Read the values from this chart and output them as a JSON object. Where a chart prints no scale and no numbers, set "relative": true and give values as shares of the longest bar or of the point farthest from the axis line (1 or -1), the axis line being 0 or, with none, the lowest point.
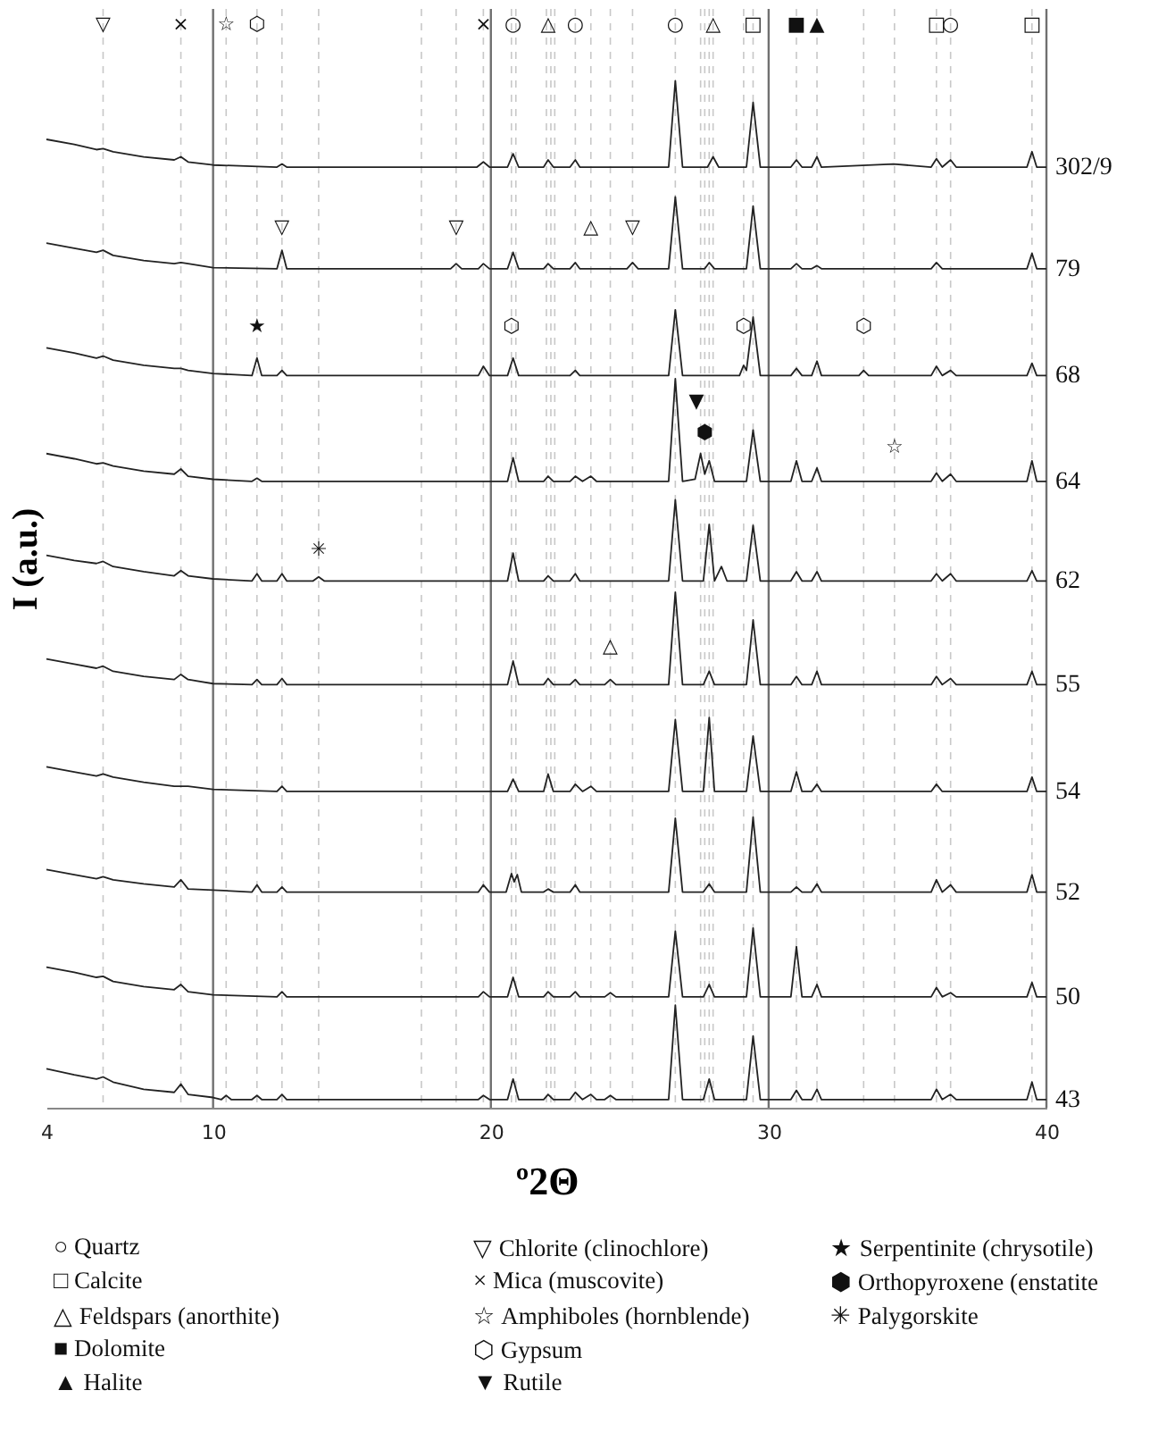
{
  "chart_data": {
    "type": "line",
    "relative": true,
    "xlabel": "º2Θ",
    "ylabel": "I (a.u.)",
    "xlim": [
      4,
      40
    ],
    "xticks": [
      4,
      10,
      20,
      30,
      40
    ],
    "line_style": "solid",
    "series": [
      {
        "name": "302/9",
        "color": "#222222",
        "x": [
          4,
          5,
          5.8,
          6.04,
          6.4,
          7.5,
          8.6,
          8.84,
          9.1,
          10,
          12.3,
          12.48,
          12.65,
          19.5,
          19.73,
          19.95,
          20.6,
          20.8,
          21.0,
          21.9,
          22.06,
          22.25,
          22.85,
          23.04,
          23.2,
          26.4,
          26.64,
          26.9,
          27.8,
          28.0,
          28.2,
          29.2,
          29.44,
          29.7,
          30.8,
          31.0,
          31.2,
          31.55,
          31.74,
          31.9,
          34.5,
          35.85,
          36.04,
          36.25,
          36.55,
          36.75,
          39.3,
          39.48,
          39.65,
          40
        ],
        "values": [
          0.943,
          0.938,
          0.933,
          0.934,
          0.931,
          0.926,
          0.923,
          0.926,
          0.921,
          0.918,
          0.916,
          0.919,
          0.916,
          0.916,
          0.921,
          0.916,
          0.916,
          0.929,
          0.916,
          0.916,
          0.923,
          0.916,
          0.916,
          0.923,
          0.916,
          0.916,
          1.0,
          0.916,
          0.916,
          0.926,
          0.916,
          0.916,
          0.979,
          0.916,
          0.916,
          0.923,
          0.916,
          0.916,
          0.926,
          0.916,
          0.919,
          0.916,
          0.924,
          0.916,
          0.923,
          0.916,
          0.916,
          0.931,
          0.916,
          0.916
        ]
      },
      {
        "name": "79",
        "color": "#222222",
        "x": [
          4,
          5,
          5.8,
          6.04,
          6.4,
          7.5,
          8.6,
          8.84,
          9.1,
          10,
          12.3,
          12.48,
          12.65,
          18.55,
          18.75,
          18.95,
          19.55,
          19.73,
          19.95,
          20.6,
          20.8,
          21.0,
          21.9,
          22.06,
          22.25,
          22.85,
          23.04,
          23.2,
          24.9,
          25.1,
          25.3,
          26.4,
          26.64,
          26.9,
          27.7,
          27.86,
          28.05,
          29.2,
          29.44,
          29.7,
          30.8,
          31.0,
          31.2,
          31.55,
          31.74,
          31.9,
          35.85,
          36.04,
          36.25,
          39.3,
          39.48,
          39.65,
          40
        ],
        "values": [
          0.842,
          0.837,
          0.833,
          0.835,
          0.83,
          0.825,
          0.822,
          0.823,
          0.822,
          0.818,
          0.817,
          0.835,
          0.817,
          0.817,
          0.822,
          0.817,
          0.817,
          0.822,
          0.817,
          0.817,
          0.833,
          0.817,
          0.817,
          0.822,
          0.817,
          0.817,
          0.823,
          0.817,
          0.817,
          0.823,
          0.817,
          0.817,
          0.887,
          0.817,
          0.817,
          0.823,
          0.817,
          0.817,
          0.878,
          0.817,
          0.817,
          0.822,
          0.817,
          0.817,
          0.82,
          0.817,
          0.817,
          0.823,
          0.817,
          0.817,
          0.832,
          0.817,
          0.817
        ]
      },
      {
        "name": "68",
        "color": "#222222",
        "x": [
          4,
          5,
          5.8,
          6.04,
          6.4,
          7.5,
          8.6,
          8.84,
          9.1,
          10,
          11.4,
          11.58,
          11.75,
          12.3,
          12.48,
          12.65,
          19.55,
          19.73,
          19.95,
          20.6,
          20.8,
          21.0,
          22.85,
          23.04,
          23.2,
          26.4,
          26.64,
          26.9,
          28.95,
          29.1,
          29.2,
          29.44,
          29.7,
          30.8,
          31.0,
          31.2,
          31.55,
          31.74,
          31.9,
          33.25,
          33.42,
          33.6,
          35.85,
          36.04,
          36.25,
          36.55,
          36.75,
          39.3,
          39.48,
          39.65,
          40
        ],
        "values": [
          0.74,
          0.735,
          0.73,
          0.732,
          0.728,
          0.723,
          0.72,
          0.72,
          0.718,
          0.715,
          0.713,
          0.73,
          0.713,
          0.713,
          0.718,
          0.713,
          0.713,
          0.722,
          0.713,
          0.713,
          0.73,
          0.713,
          0.713,
          0.718,
          0.713,
          0.713,
          0.777,
          0.713,
          0.713,
          0.723,
          0.718,
          0.77,
          0.713,
          0.713,
          0.72,
          0.713,
          0.713,
          0.727,
          0.713,
          0.713,
          0.718,
          0.713,
          0.713,
          0.722,
          0.713,
          0.718,
          0.713,
          0.713,
          0.725,
          0.713,
          0.713
        ]
      },
      {
        "name": "64",
        "color": "#222222",
        "x": [
          4,
          5,
          5.8,
          6.04,
          6.4,
          7.5,
          8.6,
          8.84,
          9.1,
          10,
          11.4,
          11.58,
          11.75,
          20.6,
          20.8,
          21.0,
          21.9,
          22.06,
          22.25,
          22.85,
          23.04,
          23.3,
          23.6,
          23.8,
          26.4,
          26.64,
          26.9,
          27.35,
          27.55,
          27.7,
          27.86,
          28.05,
          29.2,
          29.44,
          29.7,
          30.8,
          31.0,
          31.2,
          31.55,
          31.74,
          31.9,
          35.85,
          36.04,
          36.25,
          36.55,
          36.75,
          39.3,
          39.48,
          39.65,
          40
        ],
        "values": [
          0.637,
          0.632,
          0.627,
          0.628,
          0.625,
          0.62,
          0.617,
          0.622,
          0.615,
          0.612,
          0.61,
          0.613,
          0.61,
          0.61,
          0.633,
          0.61,
          0.61,
          0.615,
          0.61,
          0.61,
          0.615,
          0.61,
          0.615,
          0.61,
          0.61,
          0.71,
          0.61,
          0.612,
          0.637,
          0.617,
          0.63,
          0.61,
          0.61,
          0.66,
          0.61,
          0.61,
          0.63,
          0.61,
          0.61,
          0.623,
          0.61,
          0.61,
          0.618,
          0.61,
          0.617,
          0.61,
          0.61,
          0.63,
          0.61,
          0.61
        ]
      },
      {
        "name": "62",
        "color": "#222222",
        "x": [
          4,
          5,
          5.8,
          6.04,
          6.4,
          7.5,
          8.6,
          8.84,
          9.1,
          10,
          11.4,
          11.58,
          11.75,
          12.3,
          12.48,
          12.65,
          13.6,
          13.8,
          14.0,
          20.6,
          20.8,
          21.0,
          21.9,
          22.06,
          22.25,
          22.85,
          23.04,
          23.2,
          26.4,
          26.64,
          26.9,
          27.65,
          27.86,
          28.05,
          28.3,
          28.5,
          29.2,
          29.44,
          29.7,
          30.8,
          31.0,
          31.2,
          31.55,
          31.74,
          31.9,
          35.85,
          36.04,
          36.25,
          36.55,
          36.75,
          39.3,
          39.48,
          39.65,
          40
        ],
        "values": [
          0.538,
          0.533,
          0.53,
          0.532,
          0.527,
          0.522,
          0.518,
          0.523,
          0.518,
          0.515,
          0.513,
          0.52,
          0.513,
          0.513,
          0.52,
          0.513,
          0.513,
          0.517,
          0.513,
          0.513,
          0.54,
          0.513,
          0.513,
          0.518,
          0.513,
          0.513,
          0.52,
          0.513,
          0.513,
          0.592,
          0.513,
          0.513,
          0.568,
          0.513,
          0.527,
          0.513,
          0.513,
          0.567,
          0.513,
          0.513,
          0.522,
          0.513,
          0.513,
          0.522,
          0.513,
          0.513,
          0.52,
          0.513,
          0.52,
          0.513,
          0.513,
          0.523,
          0.513,
          0.513
        ]
      },
      {
        "name": "55",
        "color": "#222222",
        "x": [
          4,
          5,
          5.8,
          6.04,
          6.4,
          7.5,
          8.6,
          8.84,
          9.1,
          10,
          11.4,
          11.58,
          11.75,
          12.3,
          12.48,
          12.65,
          20.6,
          20.8,
          21.0,
          21.9,
          22.06,
          22.25,
          22.85,
          23.04,
          23.2,
          24.1,
          24.3,
          24.5,
          26.4,
          26.64,
          26.9,
          27.65,
          27.86,
          28.05,
          29.2,
          29.44,
          29.7,
          30.8,
          31.0,
          31.2,
          31.55,
          31.74,
          31.9,
          35.85,
          36.04,
          36.25,
          36.55,
          36.75,
          39.3,
          39.48,
          39.65,
          40
        ],
        "values": [
          0.437,
          0.432,
          0.428,
          0.43,
          0.425,
          0.42,
          0.417,
          0.422,
          0.417,
          0.413,
          0.412,
          0.417,
          0.412,
          0.412,
          0.418,
          0.412,
          0.412,
          0.435,
          0.412,
          0.412,
          0.418,
          0.412,
          0.412,
          0.417,
          0.412,
          0.412,
          0.417,
          0.412,
          0.412,
          0.502,
          0.412,
          0.412,
          0.425,
          0.412,
          0.412,
          0.475,
          0.412,
          0.412,
          0.42,
          0.412,
          0.412,
          0.425,
          0.412,
          0.412,
          0.42,
          0.412,
          0.418,
          0.412,
          0.412,
          0.425,
          0.412,
          0.412
        ]
      },
      {
        "name": "54",
        "color": "#222222",
        "x": [
          4,
          5,
          5.8,
          6.04,
          6.4,
          7.5,
          8.6,
          8.84,
          9.1,
          10,
          12.3,
          12.48,
          12.65,
          20.6,
          20.8,
          21.0,
          21.9,
          22.06,
          22.25,
          22.85,
          23.04,
          23.3,
          23.6,
          23.8,
          26.4,
          26.64,
          26.9,
          27.65,
          27.86,
          28.05,
          29.2,
          29.44,
          29.7,
          30.8,
          31.0,
          31.2,
          31.55,
          31.74,
          31.9,
          35.85,
          36.04,
          36.25,
          39.3,
          39.48,
          39.65,
          40
        ],
        "values": [
          0.332,
          0.327,
          0.323,
          0.325,
          0.322,
          0.317,
          0.313,
          0.313,
          0.313,
          0.31,
          0.308,
          0.313,
          0.308,
          0.308,
          0.32,
          0.308,
          0.308,
          0.325,
          0.308,
          0.308,
          0.315,
          0.308,
          0.313,
          0.308,
          0.308,
          0.378,
          0.308,
          0.308,
          0.38,
          0.308,
          0.308,
          0.362,
          0.308,
          0.308,
          0.327,
          0.308,
          0.308,
          0.315,
          0.308,
          0.308,
          0.315,
          0.308,
          0.308,
          0.322,
          0.308,
          0.308
        ]
      },
      {
        "name": "52",
        "color": "#222222",
        "x": [
          4,
          5,
          5.8,
          6.04,
          6.4,
          7.5,
          8.6,
          8.84,
          9.1,
          10,
          11.4,
          11.58,
          11.75,
          12.3,
          12.48,
          12.65,
          19.55,
          19.73,
          19.95,
          20.55,
          20.74,
          20.84,
          20.95,
          21.1,
          21.9,
          22.06,
          22.25,
          22.85,
          23.04,
          23.2,
          26.4,
          26.64,
          26.9,
          27.65,
          27.86,
          28.05,
          29.2,
          29.44,
          29.7,
          30.8,
          31.0,
          31.2,
          31.55,
          31.74,
          31.9,
          35.85,
          36.04,
          36.25,
          36.55,
          36.75,
          39.3,
          39.48,
          39.65,
          40
        ],
        "values": [
          0.232,
          0.227,
          0.223,
          0.225,
          0.222,
          0.218,
          0.215,
          0.222,
          0.213,
          0.212,
          0.21,
          0.217,
          0.21,
          0.21,
          0.215,
          0.21,
          0.21,
          0.217,
          0.21,
          0.21,
          0.228,
          0.22,
          0.227,
          0.21,
          0.21,
          0.213,
          0.21,
          0.21,
          0.217,
          0.21,
          0.21,
          0.282,
          0.21,
          0.21,
          0.218,
          0.21,
          0.21,
          0.283,
          0.21,
          0.21,
          0.215,
          0.21,
          0.21,
          0.218,
          0.21,
          0.21,
          0.222,
          0.21,
          0.217,
          0.21,
          0.21,
          0.227,
          0.21,
          0.21
        ]
      },
      {
        "name": "50",
        "color": "#222222",
        "x": [
          4,
          5,
          5.8,
          6.04,
          6.4,
          7.5,
          8.6,
          8.84,
          9.1,
          10,
          12.3,
          12.48,
          12.65,
          19.55,
          19.73,
          19.95,
          20.6,
          20.8,
          21.0,
          21.9,
          22.06,
          22.25,
          22.85,
          23.04,
          23.2,
          24.1,
          24.3,
          24.5,
          26.4,
          26.64,
          26.9,
          27.65,
          27.86,
          28.05,
          29.2,
          29.44,
          29.7,
          30.8,
          31.0,
          31.2,
          31.55,
          31.74,
          31.9,
          35.85,
          36.04,
          36.25,
          36.55,
          36.75,
          39.3,
          39.48,
          39.65,
          40
        ],
        "values": [
          0.137,
          0.132,
          0.127,
          0.128,
          0.123,
          0.118,
          0.115,
          0.12,
          0.113,
          0.11,
          0.108,
          0.113,
          0.108,
          0.108,
          0.113,
          0.108,
          0.108,
          0.127,
          0.108,
          0.108,
          0.113,
          0.108,
          0.108,
          0.113,
          0.108,
          0.108,
          0.112,
          0.108,
          0.108,
          0.172,
          0.108,
          0.108,
          0.12,
          0.108,
          0.108,
          0.175,
          0.108,
          0.108,
          0.157,
          0.108,
          0.108,
          0.12,
          0.108,
          0.108,
          0.117,
          0.108,
          0.112,
          0.108,
          0.108,
          0.122,
          0.108,
          0.108
        ]
      },
      {
        "name": "43",
        "color": "#222222",
        "x": [
          4,
          5,
          5.8,
          6.04,
          6.4,
          7.5,
          8.6,
          8.84,
          9.1,
          10,
          10.3,
          10.47,
          10.65,
          11.4,
          11.58,
          11.75,
          12.3,
          12.48,
          12.65,
          19.55,
          19.73,
          19.95,
          20.6,
          20.8,
          21.0,
          21.9,
          22.06,
          22.25,
          22.85,
          23.04,
          23.3,
          23.6,
          23.8,
          24.1,
          24.3,
          24.5,
          26.4,
          26.64,
          26.9,
          27.65,
          27.86,
          28.05,
          29.2,
          29.44,
          29.7,
          30.8,
          31.0,
          31.2,
          31.55,
          31.74,
          31.9,
          35.85,
          36.04,
          36.25,
          36.55,
          36.75,
          39.3,
          39.48,
          39.65,
          40
        ],
        "values": [
          0.038,
          0.032,
          0.028,
          0.03,
          0.025,
          0.018,
          0.015,
          0.023,
          0.013,
          0.01,
          0.008,
          0.012,
          0.008,
          0.008,
          0.012,
          0.008,
          0.008,
          0.013,
          0.008,
          0.008,
          0.012,
          0.008,
          0.008,
          0.028,
          0.008,
          0.008,
          0.013,
          0.008,
          0.008,
          0.015,
          0.008,
          0.013,
          0.008,
          0.008,
          0.012,
          0.008,
          0.008,
          0.1,
          0.008,
          0.008,
          0.028,
          0.008,
          0.008,
          0.07,
          0.008,
          0.008,
          0.017,
          0.008,
          0.008,
          0.018,
          0.008,
          0.008,
          0.018,
          0.008,
          0.013,
          0.008,
          0.008,
          0.025,
          0.008,
          0.008
        ]
      }
    ],
    "ref_lines": [
      {
        "axis": "x",
        "value": 10,
        "color": "#707070",
        "line_style": "solid"
      },
      {
        "axis": "x",
        "value": 20,
        "color": "#707070",
        "line_style": "solid"
      },
      {
        "axis": "x",
        "value": 30,
        "color": "#707070",
        "line_style": "solid"
      },
      {
        "axis": "x",
        "value": 6.04,
        "color": "#c8c8c8",
        "line_style": "dashed"
      },
      {
        "axis": "x",
        "value": 8.84,
        "color": "#c8c8c8",
        "line_style": "dashed"
      },
      {
        "axis": "x",
        "value": 10.47,
        "color": "#c8c8c8",
        "line_style": "dashed"
      },
      {
        "axis": "x",
        "value": 11.58,
        "color": "#c8c8c8",
        "line_style": "dashed"
      },
      {
        "axis": "x",
        "value": 12.48,
        "color": "#c8c8c8",
        "line_style": "dashed"
      },
      {
        "axis": "x",
        "value": 13.8,
        "color": "#c8c8c8",
        "line_style": "dashed"
      },
      {
        "axis": "x",
        "value": 17.5,
        "color": "#c8c8c8",
        "line_style": "dashed"
      },
      {
        "axis": "x",
        "value": 18.75,
        "color": "#c8c8c8",
        "line_style": "dashed"
      },
      {
        "axis": "x",
        "value": 19.73,
        "color": "#c8c8c8",
        "line_style": "dashed"
      },
      {
        "axis": "x",
        "value": 20.74,
        "color": "#c8c8c8",
        "line_style": "dashed"
      },
      {
        "axis": "x",
        "value": 20.9,
        "color": "#c8c8c8",
        "line_style": "dashed"
      },
      {
        "axis": "x",
        "value": 22.0,
        "color": "#c8c8c8",
        "line_style": "dashed"
      },
      {
        "axis": "x",
        "value": 22.16,
        "color": "#c8c8c8",
        "line_style": "dashed"
      },
      {
        "axis": "x",
        "value": 22.3,
        "color": "#c8c8c8",
        "line_style": "dashed"
      },
      {
        "axis": "x",
        "value": 23.04,
        "color": "#c8c8c8",
        "line_style": "dashed"
      },
      {
        "axis": "x",
        "value": 23.6,
        "color": "#c8c8c8",
        "line_style": "dashed"
      },
      {
        "axis": "x",
        "value": 24.3,
        "color": "#c8c8c8",
        "line_style": "dashed"
      },
      {
        "axis": "x",
        "value": 25.1,
        "color": "#c8c8c8",
        "line_style": "dashed"
      },
      {
        "axis": "x",
        "value": 26.64,
        "color": "#c8c8c8",
        "line_style": "dashed"
      },
      {
        "axis": "x",
        "value": 27.55,
        "color": "#c8c8c8",
        "line_style": "dashed"
      },
      {
        "axis": "x",
        "value": 27.7,
        "color": "#c8c8c8",
        "line_style": "dashed"
      },
      {
        "axis": "x",
        "value": 27.86,
        "color": "#c8c8c8",
        "line_style": "dashed"
      },
      {
        "axis": "x",
        "value": 28.0,
        "color": "#c8c8c8",
        "line_style": "dashed"
      },
      {
        "axis": "x",
        "value": 29.1,
        "color": "#c8c8c8",
        "line_style": "dashed"
      },
      {
        "axis": "x",
        "value": 29.44,
        "color": "#c8c8c8",
        "line_style": "dashed"
      },
      {
        "axis": "x",
        "value": 31.0,
        "color": "#c8c8c8",
        "line_style": "dashed"
      },
      {
        "axis": "x",
        "value": 31.74,
        "color": "#c8c8c8",
        "line_style": "dashed"
      },
      {
        "axis": "x",
        "value": 33.42,
        "color": "#c8c8c8",
        "line_style": "dashed"
      },
      {
        "axis": "x",
        "value": 34.53,
        "color": "#c8c8c8",
        "line_style": "dashed"
      },
      {
        "axis": "x",
        "value": 36.04,
        "color": "#c8c8c8",
        "line_style": "dashed"
      },
      {
        "axis": "x",
        "value": 36.55,
        "color": "#c8c8c8",
        "line_style": "dashed"
      },
      {
        "axis": "x",
        "value": 39.48,
        "color": "#c8c8c8",
        "line_style": "dashed"
      }
    ],
    "annotations": [
      {
        "text": "▽",
        "x": 6.04
      },
      {
        "text": "×",
        "x": 8.84
      },
      {
        "text": "☆",
        "x": 10.47
      },
      {
        "text": "⬡",
        "x": 11.58
      },
      {
        "text": "×",
        "x": 19.73
      },
      {
        "text": "○",
        "x": 20.8
      },
      {
        "text": "△",
        "x": 22.06
      },
      {
        "text": "○",
        "x": 23.04
      },
      {
        "text": "○",
        "x": 26.64
      },
      {
        "text": "△",
        "x": 28.0
      },
      {
        "text": "□",
        "x": 29.44
      },
      {
        "text": "■",
        "x": 31.0
      },
      {
        "text": "▲",
        "x": 31.74
      },
      {
        "text": "□",
        "x": 36.04
      },
      {
        "text": "○",
        "x": 36.55
      },
      {
        "text": "□",
        "x": 39.48
      },
      {
        "text": "▽",
        "x": 12.48,
        "y": 0.857
      },
      {
        "text": "▽",
        "x": 18.75,
        "y": 0.857
      },
      {
        "text": "△",
        "x": 23.6,
        "y": 0.857
      },
      {
        "text": "▽",
        "x": 25.1,
        "y": 0.857
      },
      {
        "text": "★",
        "x": 11.58,
        "y": 0.76
      },
      {
        "text": "⬡",
        "x": 20.74,
        "y": 0.76
      },
      {
        "text": "⬡",
        "x": 29.1,
        "y": 0.76
      },
      {
        "text": "⬡",
        "x": 33.42,
        "y": 0.76
      },
      {
        "text": "▼",
        "x": 27.4,
        "y": 0.687
      },
      {
        "text": "⬢",
        "x": 27.7,
        "y": 0.657
      },
      {
        "text": "☆",
        "x": 34.53,
        "y": 0.643
      },
      {
        "text": "✳",
        "x": 13.8,
        "y": 0.543
      },
      {
        "text": "△",
        "x": 24.3,
        "y": 0.449
      },
      "○ Quartz",
      "□ Calcite",
      "△ Feldspars (anorthite)",
      "■ Dolomite",
      "▲ Halite",
      "▽ Chlorite (clinochlore)",
      "× Mica (muscovite)",
      "☆ Amphiboles (hornblende)",
      "⬡ Gypsum",
      "▼ Rutile",
      "★ Serpentinite (chrysotile)",
      "⬢ Orthopyroxene (enstatite",
      "✳ Palygorskite"
    ]
  }
}
